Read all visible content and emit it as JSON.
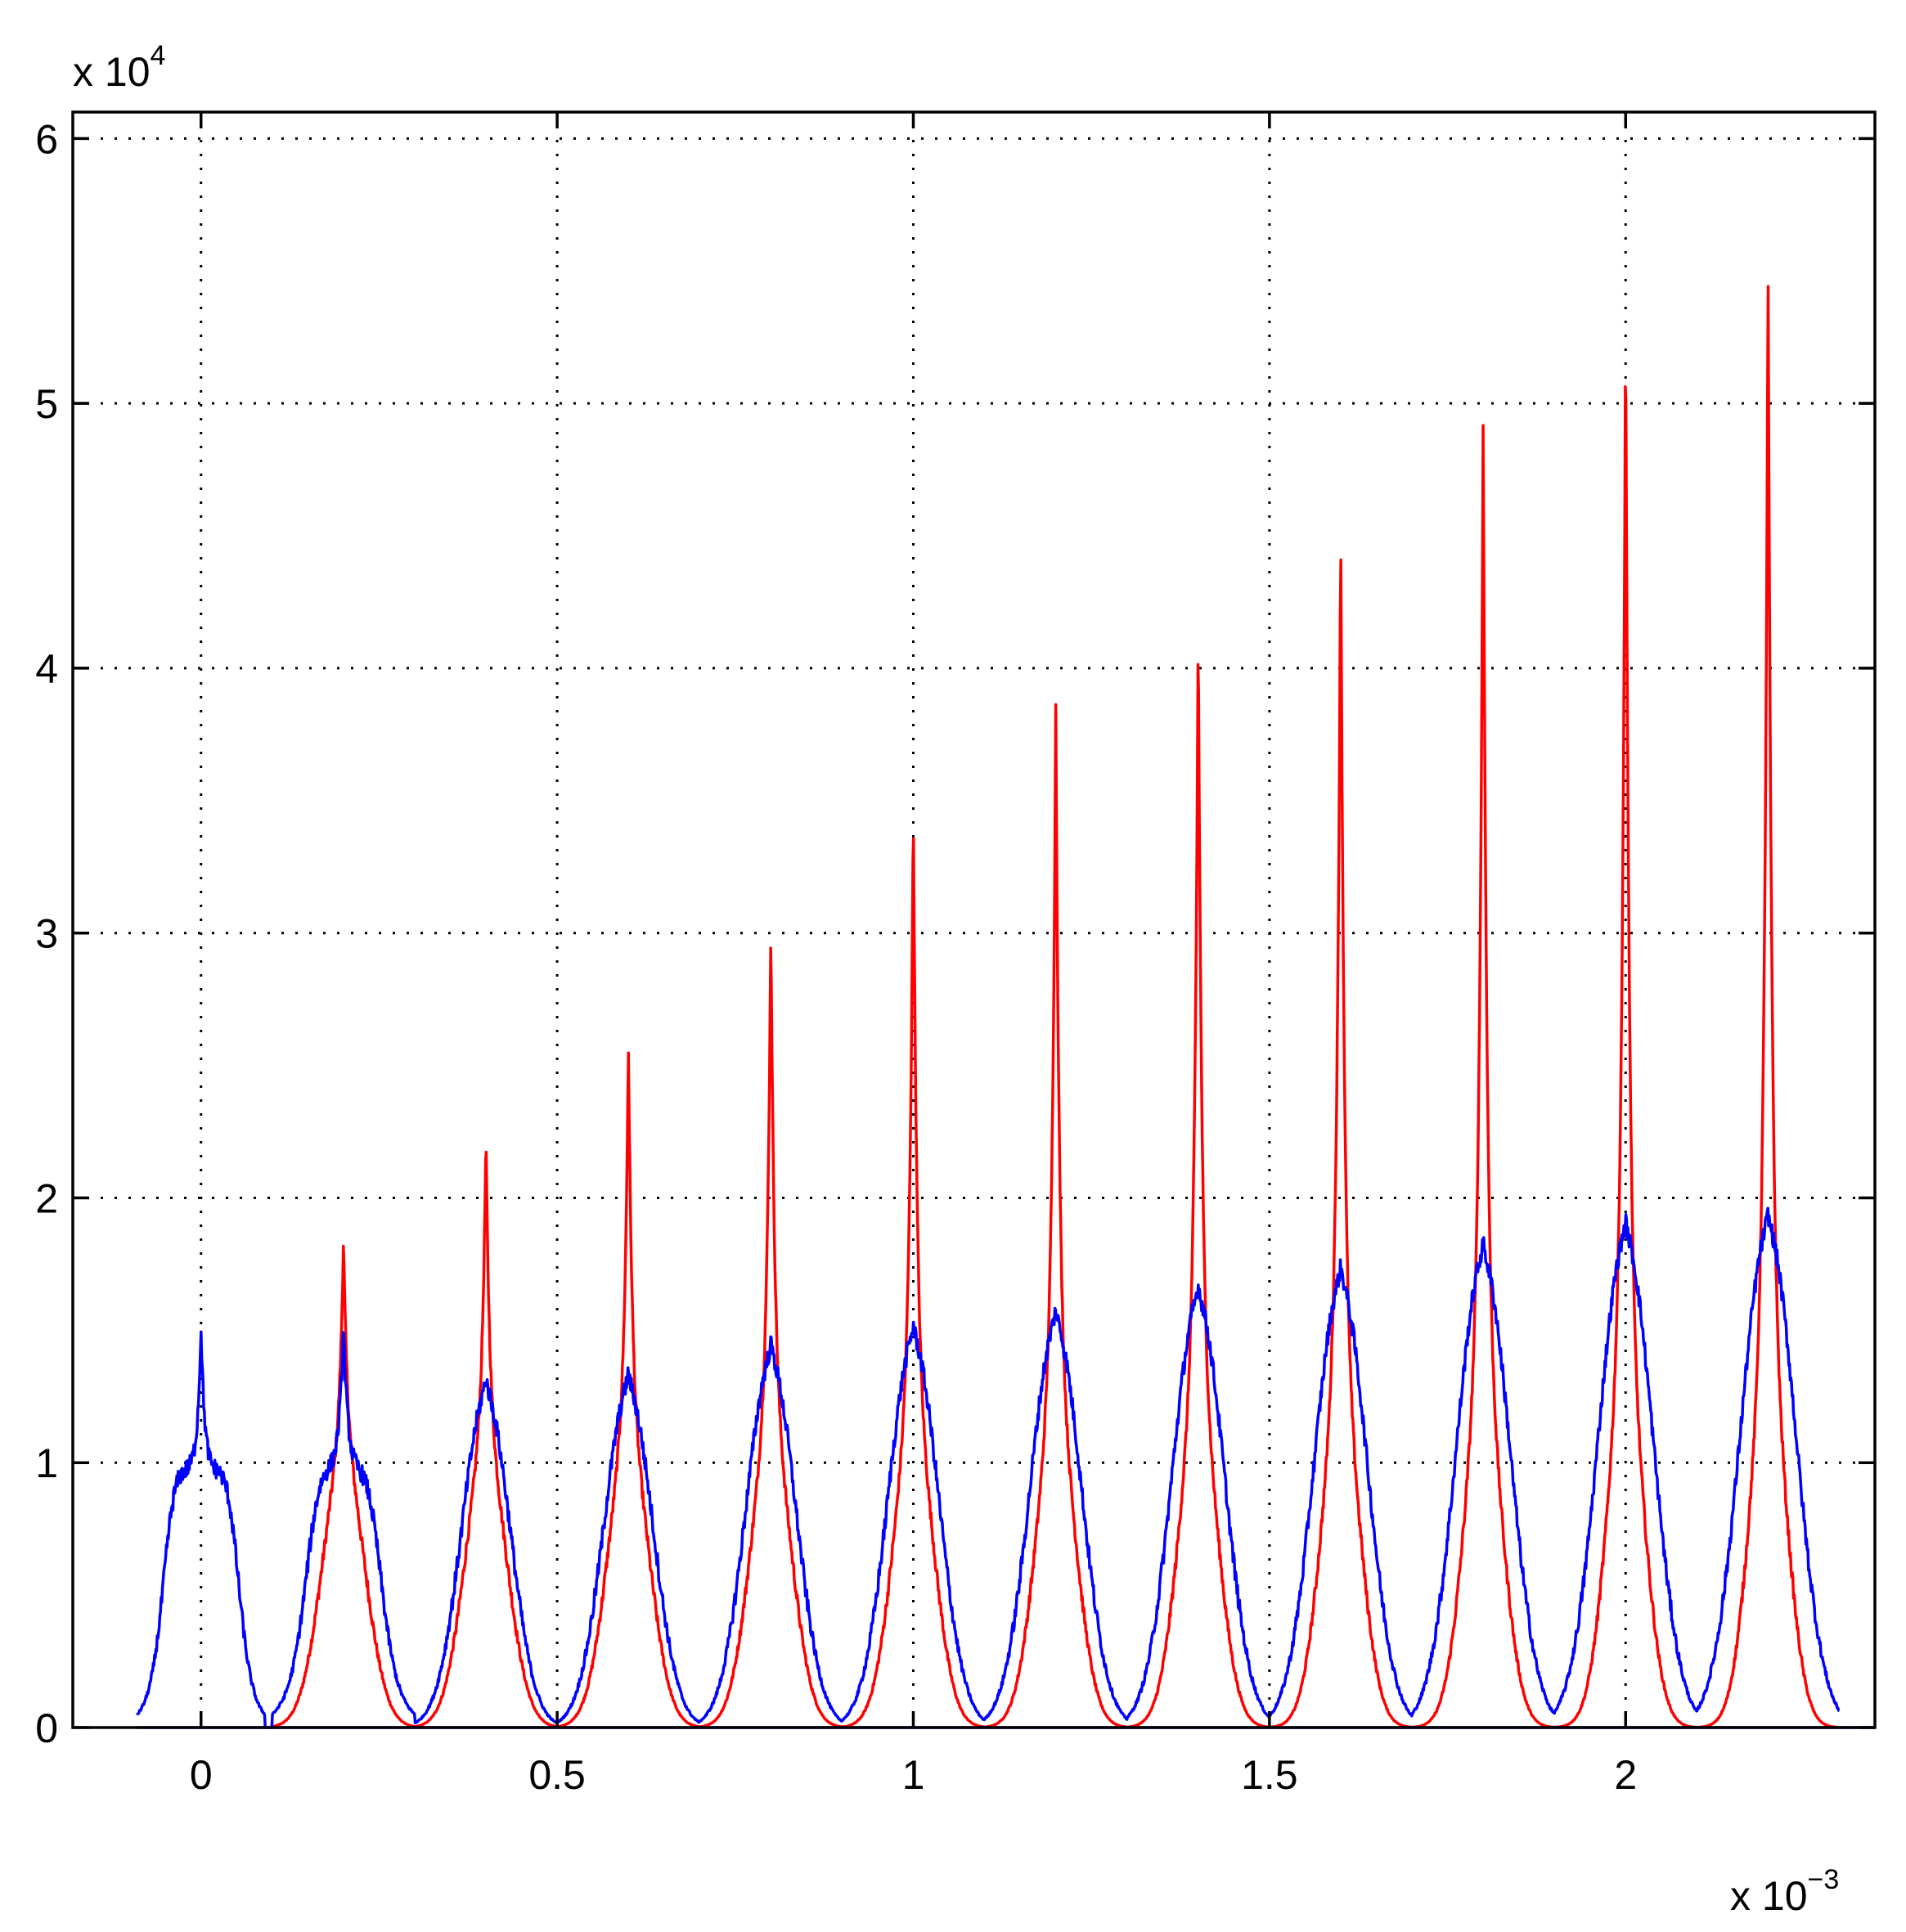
{
  "chart_data": {
    "type": "line",
    "title": "",
    "xlabel": "",
    "ylabel": "",
    "x_multiplier_label": {
      "base": "x 10",
      "exponent": "−3"
    },
    "y_multiplier_label": {
      "base": "x 10",
      "exponent": "4"
    },
    "xlim": [
      -0.18,
      2.35
    ],
    "ylim": [
      0,
      6.1
    ],
    "x_ticks": [
      0,
      0.5,
      1,
      1.5,
      2
    ],
    "x_tick_labels": [
      "0",
      "0.5",
      "1",
      "1.5",
      "2"
    ],
    "y_ticks": [
      0,
      1,
      2,
      3,
      4,
      5,
      6
    ],
    "y_tick_labels": [
      "0",
      "1",
      "2",
      "3",
      "4",
      "5",
      "6"
    ],
    "grid": true,
    "legend": "none",
    "series": [
      {
        "color": "#ff0000",
        "peaks": [
          {
            "x": 0.2,
            "y": 1.85
          },
          {
            "x": 0.4,
            "y": 2.23
          },
          {
            "x": 0.6,
            "y": 2.58
          },
          {
            "x": 0.8,
            "y": 3.04
          },
          {
            "x": 1.0,
            "y": 3.5
          },
          {
            "x": 1.2,
            "y": 3.88
          },
          {
            "x": 1.4,
            "y": 4.18
          },
          {
            "x": 1.6,
            "y": 4.57
          },
          {
            "x": 1.8,
            "y": 4.97
          },
          {
            "x": 2.0,
            "y": 5.34
          },
          {
            "x": 2.2,
            "y": 5.55
          }
        ]
      },
      {
        "color": "#0000ff",
        "peaks": [
          {
            "x": 0.0,
            "y": 1.5
          },
          {
            "x": 0.2,
            "y": 1.52
          },
          {
            "x": 0.4,
            "y": 1.32
          },
          {
            "x": 0.6,
            "y": 1.34
          },
          {
            "x": 0.8,
            "y": 1.45
          },
          {
            "x": 1.0,
            "y": 1.52
          },
          {
            "x": 1.2,
            "y": 1.58
          },
          {
            "x": 1.4,
            "y": 1.67
          },
          {
            "x": 1.6,
            "y": 1.74
          },
          {
            "x": 1.8,
            "y": 1.83
          },
          {
            "x": 2.0,
            "y": 1.91
          },
          {
            "x": 2.2,
            "y": 1.94
          }
        ]
      }
    ]
  }
}
